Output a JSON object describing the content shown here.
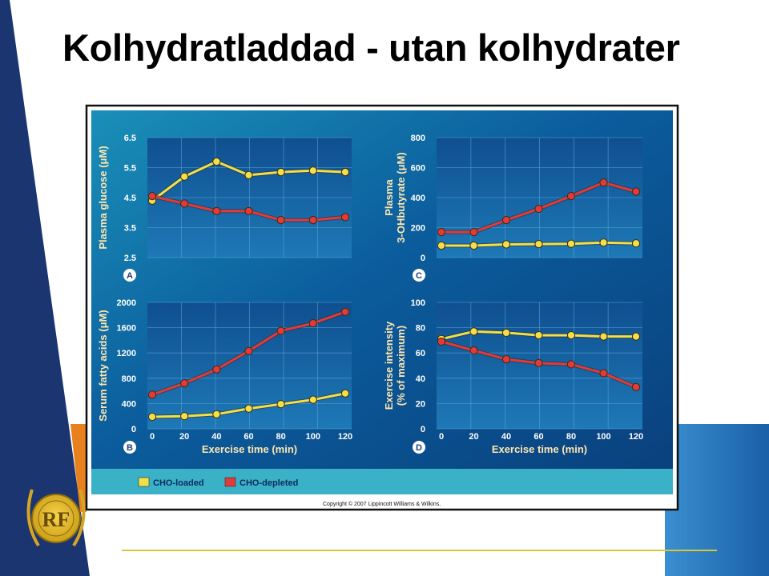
{
  "slide": {
    "title": "Kolhydratladdad - utan kolhydrater",
    "copyright": "Copyright © 2007 Lippincott Williams & Wilkins.",
    "logo": "RF",
    "colors": {
      "navy": "#1b3570",
      "accent_orange": "#e8801e",
      "yellow_line": "#d8c63a",
      "figure_bg": "#0d5a9a",
      "series_loaded": "#f2e04a",
      "series_depleted": "#e23a3a"
    }
  },
  "legend": [
    {
      "label": "CHO-loaded",
      "color": "#f2e04a"
    },
    {
      "label": "CHO-depleted",
      "color": "#e23a3a"
    }
  ],
  "chart_data": [
    {
      "panel": "A",
      "type": "line",
      "ylabel": "Plasma glucose (μM)",
      "xlabel": "",
      "x": [
        0,
        20,
        40,
        60,
        80,
        100,
        120
      ],
      "ylim": [
        2.5,
        6.5
      ],
      "yticks": [
        "6.5",
        "5.5",
        "4.5",
        "3.5",
        "2.5"
      ],
      "xticks": [],
      "series": [
        {
          "name": "CHO-loaded",
          "values": [
            4.4,
            5.2,
            5.7,
            5.25,
            5.35,
            5.4,
            5.35
          ]
        },
        {
          "name": "CHO-depleted",
          "values": [
            4.55,
            4.3,
            4.05,
            4.05,
            3.75,
            3.75,
            3.85
          ]
        }
      ]
    },
    {
      "panel": "C",
      "type": "line",
      "ylabel": "Plasma 3-OHbutyrate (μM)",
      "xlabel": "",
      "x": [
        0,
        20,
        40,
        60,
        80,
        100,
        120
      ],
      "ylim": [
        0,
        800
      ],
      "yticks": [
        "800",
        "600",
        "400",
        "200",
        "0"
      ],
      "xticks": [],
      "series": [
        {
          "name": "CHO-loaded",
          "values": [
            80,
            80,
            88,
            90,
            92,
            100,
            95
          ]
        },
        {
          "name": "CHO-depleted",
          "values": [
            170,
            170,
            250,
            325,
            410,
            500,
            440
          ]
        }
      ]
    },
    {
      "panel": "B",
      "type": "line",
      "ylabel": "Serum fatty acids (μM)",
      "xlabel": "Exercise time (min)",
      "x": [
        0,
        20,
        40,
        60,
        80,
        100,
        120
      ],
      "ylim": [
        0,
        2000
      ],
      "yticks": [
        "2000",
        "1600",
        "1200",
        "800",
        "400",
        "0"
      ],
      "xticks": [
        "0",
        "20",
        "40",
        "60",
        "80",
        "100",
        "120"
      ],
      "series": [
        {
          "name": "CHO-loaded",
          "values": [
            190,
            200,
            230,
            320,
            390,
            460,
            560
          ]
        },
        {
          "name": "CHO-depleted",
          "values": [
            540,
            720,
            940,
            1230,
            1550,
            1670,
            1850
          ]
        }
      ]
    },
    {
      "panel": "D",
      "type": "line",
      "ylabel": "Exercise intensity (% of maximum)",
      "xlabel": "Exercise time (min)",
      "x": [
        0,
        20,
        40,
        60,
        80,
        100,
        120
      ],
      "ylim": [
        0,
        100
      ],
      "yticks": [
        "100",
        "80",
        "60",
        "40",
        "20",
        "0"
      ],
      "xticks": [
        "0",
        "20",
        "40",
        "60",
        "80",
        "100",
        "120"
      ],
      "series": [
        {
          "name": "CHO-loaded",
          "values": [
            71,
            77,
            76,
            74,
            74,
            73,
            73
          ]
        },
        {
          "name": "CHO-depleted",
          "values": [
            69,
            62,
            55,
            52,
            51,
            44,
            33
          ]
        }
      ]
    }
  ]
}
